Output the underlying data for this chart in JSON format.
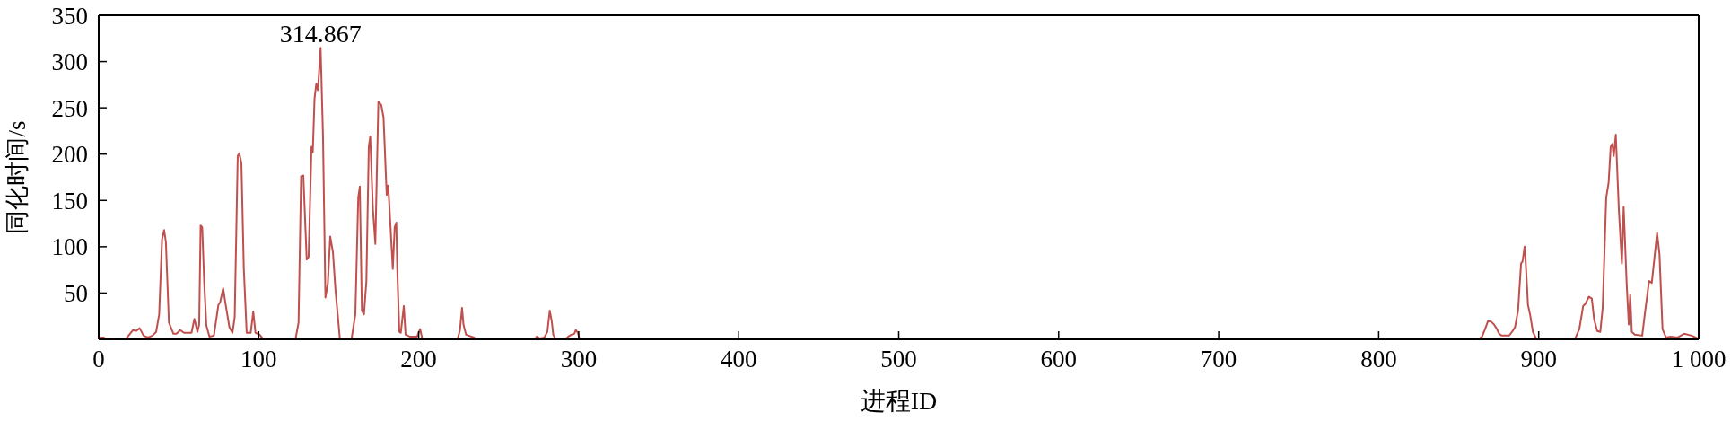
{
  "chart_data": {
    "type": "line",
    "xlabel": "进程ID",
    "ylabel": "同化时间/s",
    "color": "#c0504d",
    "line_style": "solid",
    "x": [
      0,
      3,
      5,
      16.8,
      21.5,
      23.4,
      25.6,
      28,
      30.8,
      33.6,
      35.9,
      37.8,
      39.6,
      40.9,
      42,
      43.9,
      46.7,
      48.6,
      51,
      53.3,
      58,
      59.8,
      61.7,
      62.8,
      63.7,
      64.7,
      66,
      67.3,
      69.2,
      72,
      74.8,
      75.9,
      77.8,
      79.4,
      81.7,
      83.6,
      85,
      86.9,
      87.9,
      89.2,
      90.7,
      92.5,
      95,
      96.6,
      98,
      100.6,
      102,
      103,
      123,
      124.9,
      126.5,
      127.9,
      130,
      131.2,
      133,
      133.8,
      134.9,
      136,
      137,
      138.7,
      140.2,
      141.7,
      143.2,
      144.7,
      146.4,
      148,
      150.7,
      158,
      160.4,
      162.2,
      163.2,
      164.5,
      165.8,
      167.3,
      168.8,
      169.7,
      171.4,
      172.9,
      174.8,
      176.6,
      178,
      180,
      180.8,
      181.3,
      183.8,
      185,
      186,
      186.6,
      187.9,
      188.8,
      190.7,
      191.8,
      194.4,
      199,
      200.9,
      202.3,
      224.3,
      225.8,
      227.1,
      228,
      229.6,
      234.6,
      235.6,
      272.5,
      273.9,
      275.7,
      278.5,
      280.4,
      281.9,
      283.2,
      284.1,
      285.6,
      291.6,
      293.5,
      295.4,
      297.2,
      298.2,
      299.5,
      300.6,
      862.4,
      864.6,
      866.5,
      868.4,
      870.3,
      872.1,
      873.6,
      875.3,
      876.8,
      881.5,
      883.3,
      885.2,
      887.1,
      889,
      889.9,
      891.2,
      891.8,
      893.3,
      894.6,
      896.4,
      898.3,
      922.6,
      925.4,
      927.8,
      929.1,
      931.4,
      933.2,
      934.7,
      936.6,
      938.5,
      940,
      942.2,
      943.7,
      945,
      946,
      946.9,
      948.2,
      950.1,
      952,
      953.1,
      955,
      956.3,
      957.2,
      958.2,
      960,
      964.7,
      966.6,
      969,
      970.7,
      974,
      975.5,
      977.4,
      979.6,
      982.5,
      986.8,
      990.9,
      995.6,
      999.3,
      1000
    ],
    "values": [
      2,
      2,
      0,
      0,
      10,
      9,
      12,
      4,
      2,
      4,
      8,
      27,
      108,
      118,
      105,
      18,
      6,
      6,
      10,
      7,
      7,
      22,
      8,
      16,
      123,
      121,
      60,
      15,
      3,
      4,
      37,
      40,
      55,
      37,
      13,
      7,
      24,
      198,
      201,
      190,
      76,
      7,
      7,
      30,
      7,
      5,
      2,
      0,
      0,
      18,
      176,
      177,
      86,
      89,
      208,
      202,
      260,
      276,
      269,
      314.867,
      218,
      45,
      60,
      111,
      94,
      53,
      1,
      0,
      27,
      153,
      165,
      31,
      27,
      63,
      208,
      219,
      140,
      103,
      257,
      253,
      240,
      156,
      166,
      156,
      76,
      121,
      126,
      76,
      8,
      7,
      36,
      5,
      3,
      3,
      11,
      0,
      0,
      10,
      34,
      16,
      5,
      2,
      0,
      0,
      3,
      1,
      2,
      8,
      31,
      19,
      5,
      0,
      0,
      3,
      5,
      6,
      10,
      7,
      0,
      0,
      3,
      11,
      20,
      19,
      16,
      12,
      6,
      4,
      4,
      8,
      13,
      31,
      82,
      84,
      100,
      86,
      37,
      27,
      8,
      1,
      0,
      11,
      36,
      38,
      46,
      44,
      21,
      9,
      8,
      34,
      153,
      169,
      208,
      211,
      198,
      221,
      140,
      82,
      143,
      60,
      16,
      48,
      8,
      5,
      4,
      31,
      63,
      61,
      115,
      92,
      11,
      2,
      3,
      2,
      6,
      4,
      1,
      0
    ],
    "xlim": [
      0,
      1000
    ],
    "xticks": [
      0,
      100,
      200,
      300,
      400,
      500,
      600,
      700,
      800,
      900,
      {
        "value": 1000,
        "label": "1 000"
      }
    ],
    "ylim": [
      0,
      350
    ],
    "yticks": [
      50,
      100,
      150,
      200,
      250,
      300,
      350
    ],
    "annotations": [
      {
        "text": "314.867",
        "x": 138.7,
        "y": 314.867
      }
    ]
  }
}
